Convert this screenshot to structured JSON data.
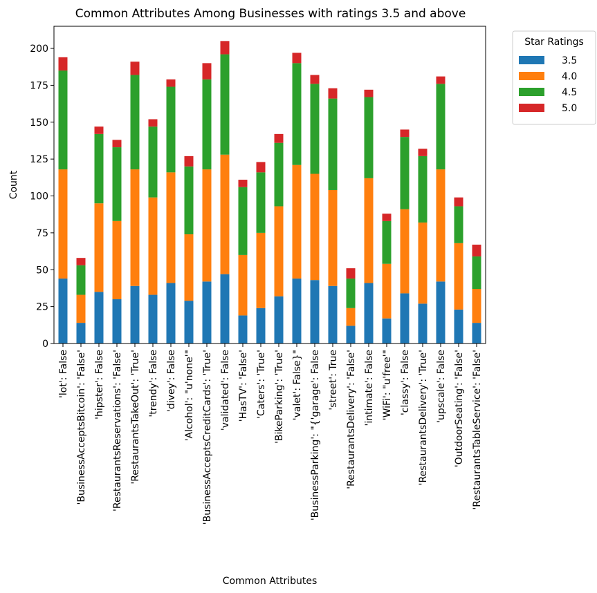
{
  "chart_data": {
    "type": "bar",
    "stacked": true,
    "title": "Common Attributes Among Businesses with ratings 3.5 and above",
    "xlabel": "Common Attributes",
    "ylabel": "Count",
    "ylim": [
      0,
      215
    ],
    "yticks": [
      0,
      25,
      50,
      75,
      100,
      125,
      150,
      175,
      200
    ],
    "grid": false,
    "legend": {
      "title": "Star Ratings",
      "placement": "outside-top-right"
    },
    "categories": [
      "'lot': False",
      "'BusinessAcceptsBitcoin': 'False'",
      "'hipster': False",
      "'RestaurantsReservations': 'False'",
      "'RestaurantsTakeOut': 'True'",
      "'trendy': False",
      "'divey': False",
      "'Alcohol': \"u'none'\"",
      "'BusinessAcceptsCreditCards': 'True'",
      "'validated': False",
      "'HasTV': 'False'",
      "'Caters': 'True'",
      "'BikeParking': 'True'",
      "'valet': False}\"",
      "'BusinessParking': \"{'garage': False",
      "'street': True",
      "'RestaurantsDelivery': 'False'",
      "'intimate': False",
      "'WiFi': \"u'free'\"",
      "'classy': False",
      "'RestaurantsDelivery': 'True'",
      "'upscale': False",
      "'OutdoorSeating': 'False'",
      "'RestaurantsTableService': 'False'"
    ],
    "series": [
      {
        "name": "3.5",
        "color": "#1f77b4",
        "values": [
          44,
          14,
          35,
          30,
          39,
          33,
          41,
          29,
          42,
          47,
          19,
          24,
          32,
          44,
          43,
          39,
          12,
          41,
          17,
          34,
          27,
          42,
          23,
          14
        ]
      },
      {
        "name": "4.0",
        "color": "#ff7f0e",
        "values": [
          74,
          19,
          60,
          53,
          79,
          66,
          75,
          45,
          76,
          81,
          41,
          51,
          61,
          77,
          72,
          65,
          12,
          71,
          37,
          57,
          55,
          76,
          45,
          23
        ]
      },
      {
        "name": "4.5",
        "color": "#2ca02c",
        "values": [
          67,
          20,
          47,
          50,
          64,
          48,
          58,
          46,
          61,
          68,
          46,
          41,
          43,
          69,
          61,
          62,
          20,
          55,
          29,
          49,
          45,
          58,
          25,
          22
        ]
      },
      {
        "name": "5.0",
        "color": "#d62728",
        "values": [
          9,
          5,
          5,
          5,
          9,
          5,
          5,
          7,
          11,
          9,
          5,
          7,
          6,
          7,
          6,
          7,
          7,
          5,
          5,
          5,
          5,
          5,
          6,
          8
        ]
      }
    ]
  }
}
